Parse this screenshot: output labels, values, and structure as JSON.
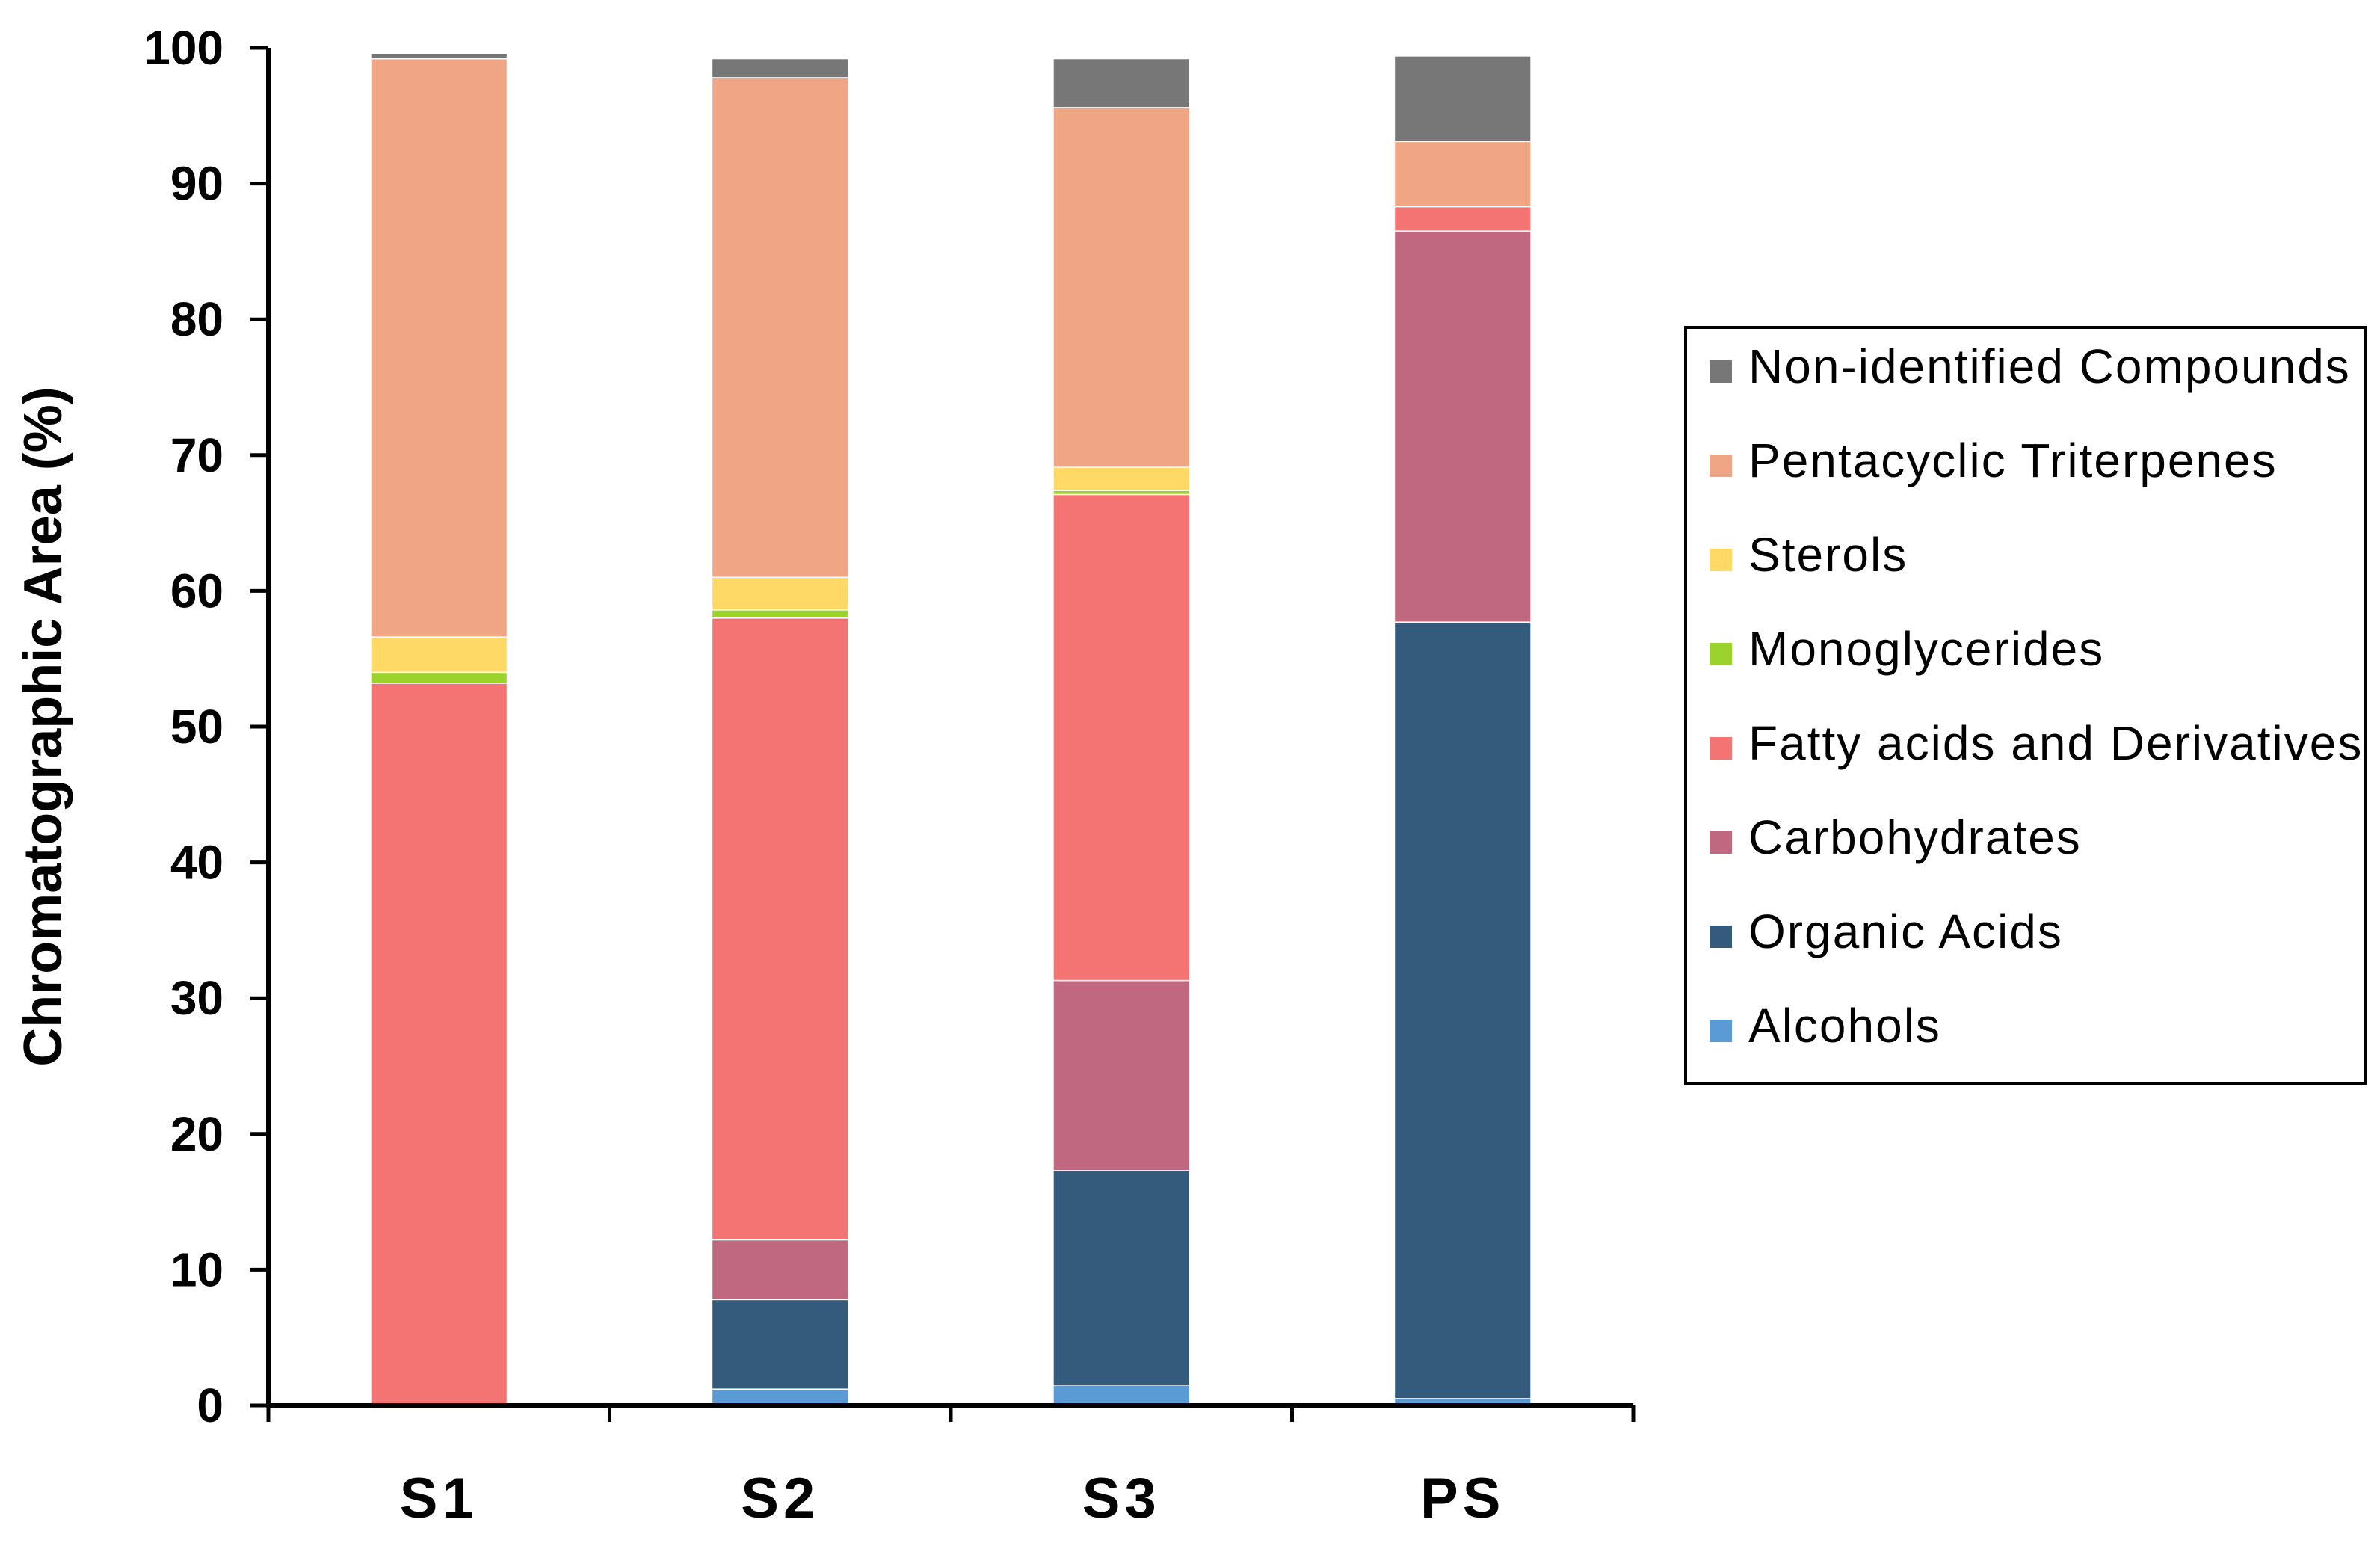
{
  "chart_data": {
    "type": "bar",
    "stacked": true,
    "ylabel": "Chromatographic Area (%)",
    "xlabel": "",
    "ylim": [
      0,
      100
    ],
    "yticks": [
      "0",
      "10",
      "20",
      "30",
      "40",
      "50",
      "60",
      "70",
      "80",
      "90",
      "100"
    ],
    "categories": [
      "S1",
      "S2",
      "S3",
      "PS"
    ],
    "legend_position": "right",
    "series": [
      {
        "name": "Alcohols",
        "color": "#5b9bd5",
        "values": [
          0.0,
          1.2,
          1.5,
          0.5
        ]
      },
      {
        "name": "Organic Acids",
        "color": "#345b7c",
        "values": [
          0.0,
          6.6,
          15.8,
          57.2
        ]
      },
      {
        "name": "Carbohydrates",
        "color": "#c0687f",
        "values": [
          0.0,
          4.4,
          14.0,
          28.8
        ]
      },
      {
        "name": "Fatty acids and Derivatives",
        "color": "#f47474",
        "values": [
          53.2,
          45.8,
          35.8,
          1.8
        ]
      },
      {
        "name": "Monoglycerides",
        "color": "#9bd32c",
        "values": [
          0.8,
          0.6,
          0.3,
          0.0
        ]
      },
      {
        "name": "Sterols",
        "color": "#ffd966",
        "values": [
          2.6,
          2.4,
          1.7,
          0.0
        ]
      },
      {
        "name": "Pentacyclic Triterpenes",
        "color": "#f0a584",
        "values": [
          42.6,
          36.8,
          26.5,
          4.8
        ]
      },
      {
        "name": "Non-identified Compounds",
        "color": "#777777",
        "values": [
          0.4,
          1.4,
          3.6,
          6.3
        ]
      }
    ]
  }
}
